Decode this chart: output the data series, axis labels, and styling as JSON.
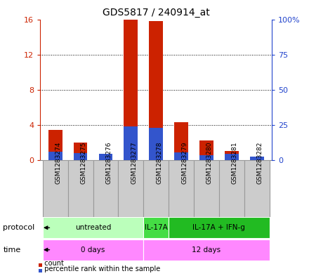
{
  "title": "GDS5817 / 240914_at",
  "samples": [
    "GSM1283274",
    "GSM1283275",
    "GSM1283276",
    "GSM1283277",
    "GSM1283278",
    "GSM1283279",
    "GSM1283280",
    "GSM1283281",
    "GSM1283282"
  ],
  "count_values": [
    3.4,
    2.0,
    0.7,
    16.0,
    15.8,
    4.3,
    2.2,
    1.0,
    0.4
  ],
  "percentile_values_pct": [
    6.0,
    5.0,
    4.5,
    24.0,
    23.0,
    5.5,
    3.5,
    4.5,
    2.5
  ],
  "ylim_left": [
    0,
    16
  ],
  "ylim_right": [
    0,
    100
  ],
  "yticks_left": [
    0,
    4,
    8,
    12,
    16
  ],
  "yticks_right": [
    0,
    25,
    50,
    75,
    100
  ],
  "ytick_labels_left": [
    "0",
    "4",
    "8",
    "12",
    "16"
  ],
  "ytick_labels_right": [
    "0",
    "25",
    "50",
    "75",
    "100%"
  ],
  "bar_color_red": "#cc2200",
  "bar_color_blue": "#3355cc",
  "bar_width": 0.55,
  "protocol_labels": [
    "untreated",
    "IL-17A",
    "IL-17A + IFN-g"
  ],
  "protocol_colors": [
    "#bbffbb",
    "#44dd44",
    "#22bb22"
  ],
  "time_labels": [
    "0 days",
    "12 days"
  ],
  "time_color": "#ff88ff",
  "background_color": "#ffffff",
  "left_axis_color": "#cc2200",
  "right_axis_color": "#2244cc",
  "legend_count_label": "count",
  "legend_pct_label": "percentile rank within the sample",
  "cell_bg": "#cccccc",
  "cell_border": "#999999",
  "grid_color": "#000000"
}
